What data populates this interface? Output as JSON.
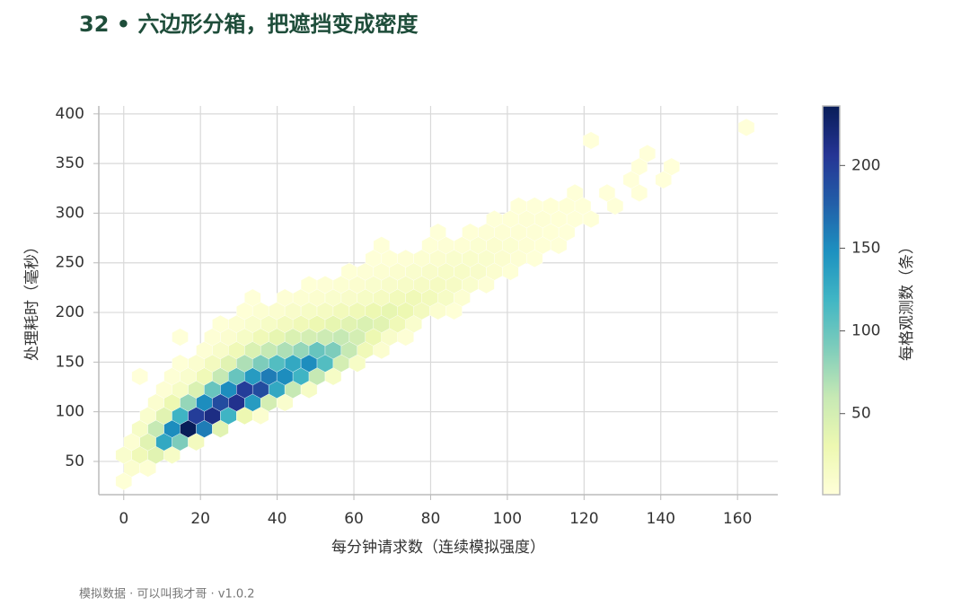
{
  "chart_data": {
    "type": "hexbin",
    "title": "32 • 六边形分箱，把遮挡变成密度",
    "x_label": "每分钟请求数（连续模拟强度）",
    "y_label": "处理耗时（毫秒）",
    "colorbar_label": "每格观测数（条）",
    "footer": "模拟数据 · 可以叫我才哥 · v1.0.2",
    "colormap": "YlGnBu",
    "grid": true,
    "xlim": [
      -6.5,
      170.5
    ],
    "xticks": [
      0,
      20,
      40,
      60,
      80,
      100,
      120,
      140,
      160
    ],
    "ylim": [
      16.5,
      408
    ],
    "yticks": [
      50,
      100,
      150,
      200,
      250,
      300,
      350,
      400
    ],
    "clim": [
      1,
      236
    ],
    "cticks": [
      50,
      100,
      150,
      200
    ],
    "rows": [
      {
        "y": 30,
        "x": [
          0
        ],
        "values": [
          3
        ]
      },
      {
        "y": 43.2,
        "x": [
          2.1,
          6.3
        ],
        "values": [
          8,
          5
        ]
      },
      {
        "y": 56.4,
        "x": [
          0,
          4.2,
          8.4,
          12.6
        ],
        "values": [
          10,
          25,
          40,
          15
        ]
      },
      {
        "y": 69.6,
        "x": [
          2.1,
          6.3,
          10.5,
          14.7,
          18.9
        ],
        "values": [
          6,
          40,
          130,
          90,
          20
        ]
      },
      {
        "y": 82.8,
        "x": [
          4.2,
          8.4,
          12.6,
          16.8,
          21,
          25.2
        ],
        "values": [
          15,
          60,
          150,
          236,
          160,
          40
        ]
      },
      {
        "y": 96,
        "x": [
          6.3,
          10.5,
          14.7,
          18.9,
          23.1,
          27.3,
          31.5,
          35.7
        ],
        "values": [
          10,
          40,
          120,
          200,
          215,
          120,
          30,
          8
        ]
      },
      {
        "y": 109.2,
        "x": [
          8.4,
          12.6,
          16.8,
          21,
          25.2,
          29.4,
          33.6,
          37.8,
          42
        ],
        "values": [
          8,
          30,
          80,
          150,
          190,
          210,
          140,
          50,
          10
        ]
      },
      {
        "y": 122.4,
        "x": [
          10.5,
          14.7,
          18.9,
          23.1,
          27.3,
          31.5,
          35.7,
          39.9,
          44.1,
          48.3
        ],
        "values": [
          5,
          15,
          45,
          100,
          150,
          200,
          190,
          130,
          60,
          15
        ]
      },
      {
        "y": 135.6,
        "x": [
          4.2,
          12.6,
          16.8,
          21,
          25.2,
          29.4,
          33.6,
          37.8,
          42,
          46.2,
          50.4,
          54.6
        ],
        "values": [
          1,
          4,
          10,
          25,
          60,
          100,
          140,
          160,
          150,
          120,
          60,
          15
        ]
      },
      {
        "y": 148.8,
        "x": [
          14.7,
          18.9,
          23.1,
          27.3,
          31.5,
          35.7,
          39.9,
          44.1,
          48.3,
          52.5,
          56.7,
          60.9
        ],
        "values": [
          3,
          8,
          20,
          40,
          70,
          90,
          110,
          130,
          150,
          110,
          50,
          15
        ]
      },
      {
        "y": 162,
        "x": [
          21,
          25.2,
          29.4,
          33.6,
          37.8,
          42,
          46.2,
          50.4,
          54.6,
          58.8,
          63,
          67.2
        ],
        "values": [
          5,
          12,
          25,
          45,
          60,
          70,
          80,
          100,
          90,
          60,
          25,
          8
        ]
      },
      {
        "y": 175.2,
        "x": [
          14.7,
          23.1,
          27.3,
          31.5,
          35.7,
          39.9,
          44.1,
          48.3,
          52.5,
          56.7,
          60.9,
          65.1,
          69.3,
          73.5
        ],
        "values": [
          2,
          4,
          8,
          15,
          25,
          35,
          45,
          50,
          55,
          60,
          50,
          30,
          12,
          4
        ]
      },
      {
        "y": 188.4,
        "x": [
          25.2,
          29.4,
          33.6,
          37.8,
          42,
          46.2,
          50.4,
          54.6,
          58.8,
          63,
          67.2,
          71.4,
          75.6
        ],
        "values": [
          3,
          6,
          10,
          15,
          20,
          25,
          30,
          35,
          40,
          45,
          40,
          25,
          10
        ]
      },
      {
        "y": 201.6,
        "x": [
          31.5,
          35.7,
          39.9,
          44.1,
          48.3,
          52.5,
          56.7,
          60.9,
          65.1,
          69.3,
          73.5,
          77.7,
          81.9,
          86.1
        ],
        "values": [
          3,
          6,
          8,
          12,
          15,
          18,
          22,
          25,
          30,
          35,
          30,
          20,
          8,
          3
        ]
      },
      {
        "y": 214.8,
        "x": [
          33.6,
          42,
          46.2,
          50.4,
          54.6,
          58.8,
          63,
          67.2,
          71.4,
          75.6,
          79.8,
          84,
          88.2
        ],
        "values": [
          2,
          4,
          6,
          8,
          10,
          12,
          15,
          18,
          22,
          25,
          22,
          15,
          6
        ]
      },
      {
        "y": 228,
        "x": [
          48.3,
          52.5,
          56.7,
          60.9,
          65.1,
          69.3,
          73.5,
          77.7,
          81.9,
          86.1,
          90.3,
          94.5
        ],
        "values": [
          3,
          4,
          6,
          8,
          10,
          12,
          14,
          16,
          18,
          16,
          10,
          4
        ]
      },
      {
        "y": 241.2,
        "x": [
          58.8,
          63,
          67.2,
          71.4,
          75.6,
          79.8,
          84,
          88.2,
          92.4,
          96.6,
          100.8
        ],
        "values": [
          3,
          4,
          6,
          8,
          10,
          12,
          14,
          14,
          12,
          8,
          3
        ]
      },
      {
        "y": 254.4,
        "x": [
          65.1,
          69.3,
          73.5,
          77.7,
          81.9,
          86.1,
          90.3,
          94.5,
          98.7,
          102.9,
          107.1
        ],
        "values": [
          2,
          3,
          4,
          6,
          8,
          10,
          11,
          10,
          8,
          5,
          2
        ]
      },
      {
        "y": 267.6,
        "x": [
          67.2,
          79.8,
          84,
          88.2,
          92.4,
          96.6,
          100.8,
          105,
          109.2,
          113.4
        ],
        "values": [
          2,
          3,
          4,
          5,
          7,
          8,
          7,
          5,
          3,
          2
        ]
      },
      {
        "y": 280.8,
        "x": [
          81.9,
          90.3,
          94.5,
          98.7,
          102.9,
          107.1,
          111.3,
          115.5
        ],
        "values": [
          2,
          3,
          4,
          5,
          5,
          4,
          3,
          2
        ]
      },
      {
        "y": 294,
        "x": [
          96.6,
          100.8,
          105,
          109.2,
          113.4,
          117.6,
          121.8
        ],
        "values": [
          2,
          3,
          4,
          4,
          3,
          2,
          2
        ]
      },
      {
        "y": 307.2,
        "x": [
          102.9,
          107.1,
          111.3,
          115.5,
          119.7,
          128.1
        ],
        "values": [
          2,
          2,
          3,
          3,
          2,
          2
        ]
      },
      {
        "y": 320.4,
        "x": [
          117.6,
          126,
          134.4
        ],
        "values": [
          2,
          1,
          1
        ]
      },
      {
        "y": 333.6,
        "x": [
          132.3,
          140.7
        ],
        "values": [
          1,
          1
        ]
      },
      {
        "y": 346.8,
        "x": [
          134.4,
          142.8
        ],
        "values": [
          1,
          1
        ]
      },
      {
        "y": 360,
        "x": [
          136.5
        ],
        "values": [
          1
        ]
      },
      {
        "y": 373.2,
        "x": [
          121.8
        ],
        "values": [
          1
        ]
      },
      {
        "y": 386.4,
        "x": [
          162.3
        ],
        "values": [
          1
        ]
      }
    ]
  }
}
